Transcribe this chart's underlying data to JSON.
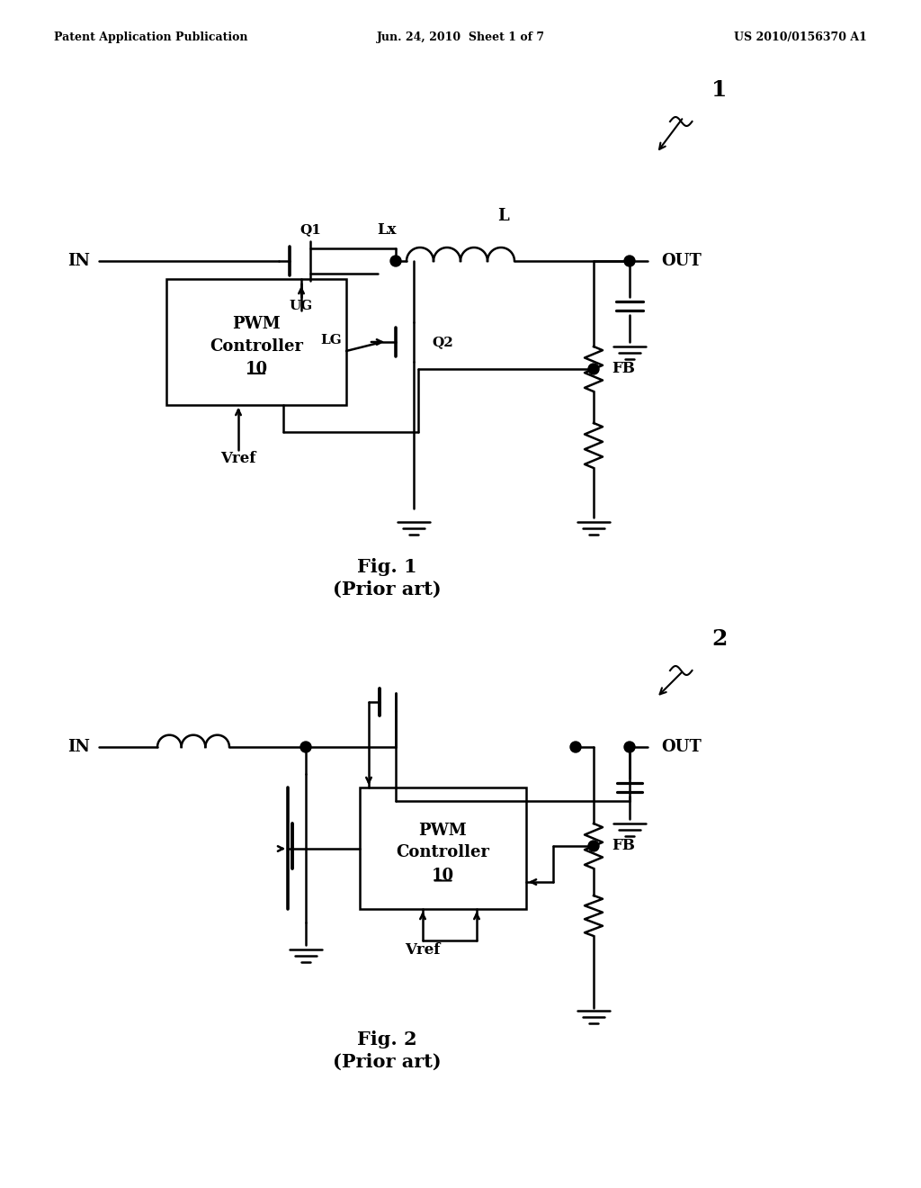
{
  "bg_color": "#ffffff",
  "line_color": "#000000",
  "header_left": "Patent Application Publication",
  "header_center": "Jun. 24, 2010  Sheet 1 of 7",
  "header_right": "US 2010/0156370 A1",
  "fig1_label": "Fig. 1",
  "fig1_sublabel": "(Prior art)",
  "fig2_label": "Fig. 2",
  "fig2_sublabel": "(Prior art)",
  "ref1": "1",
  "ref2": "2"
}
